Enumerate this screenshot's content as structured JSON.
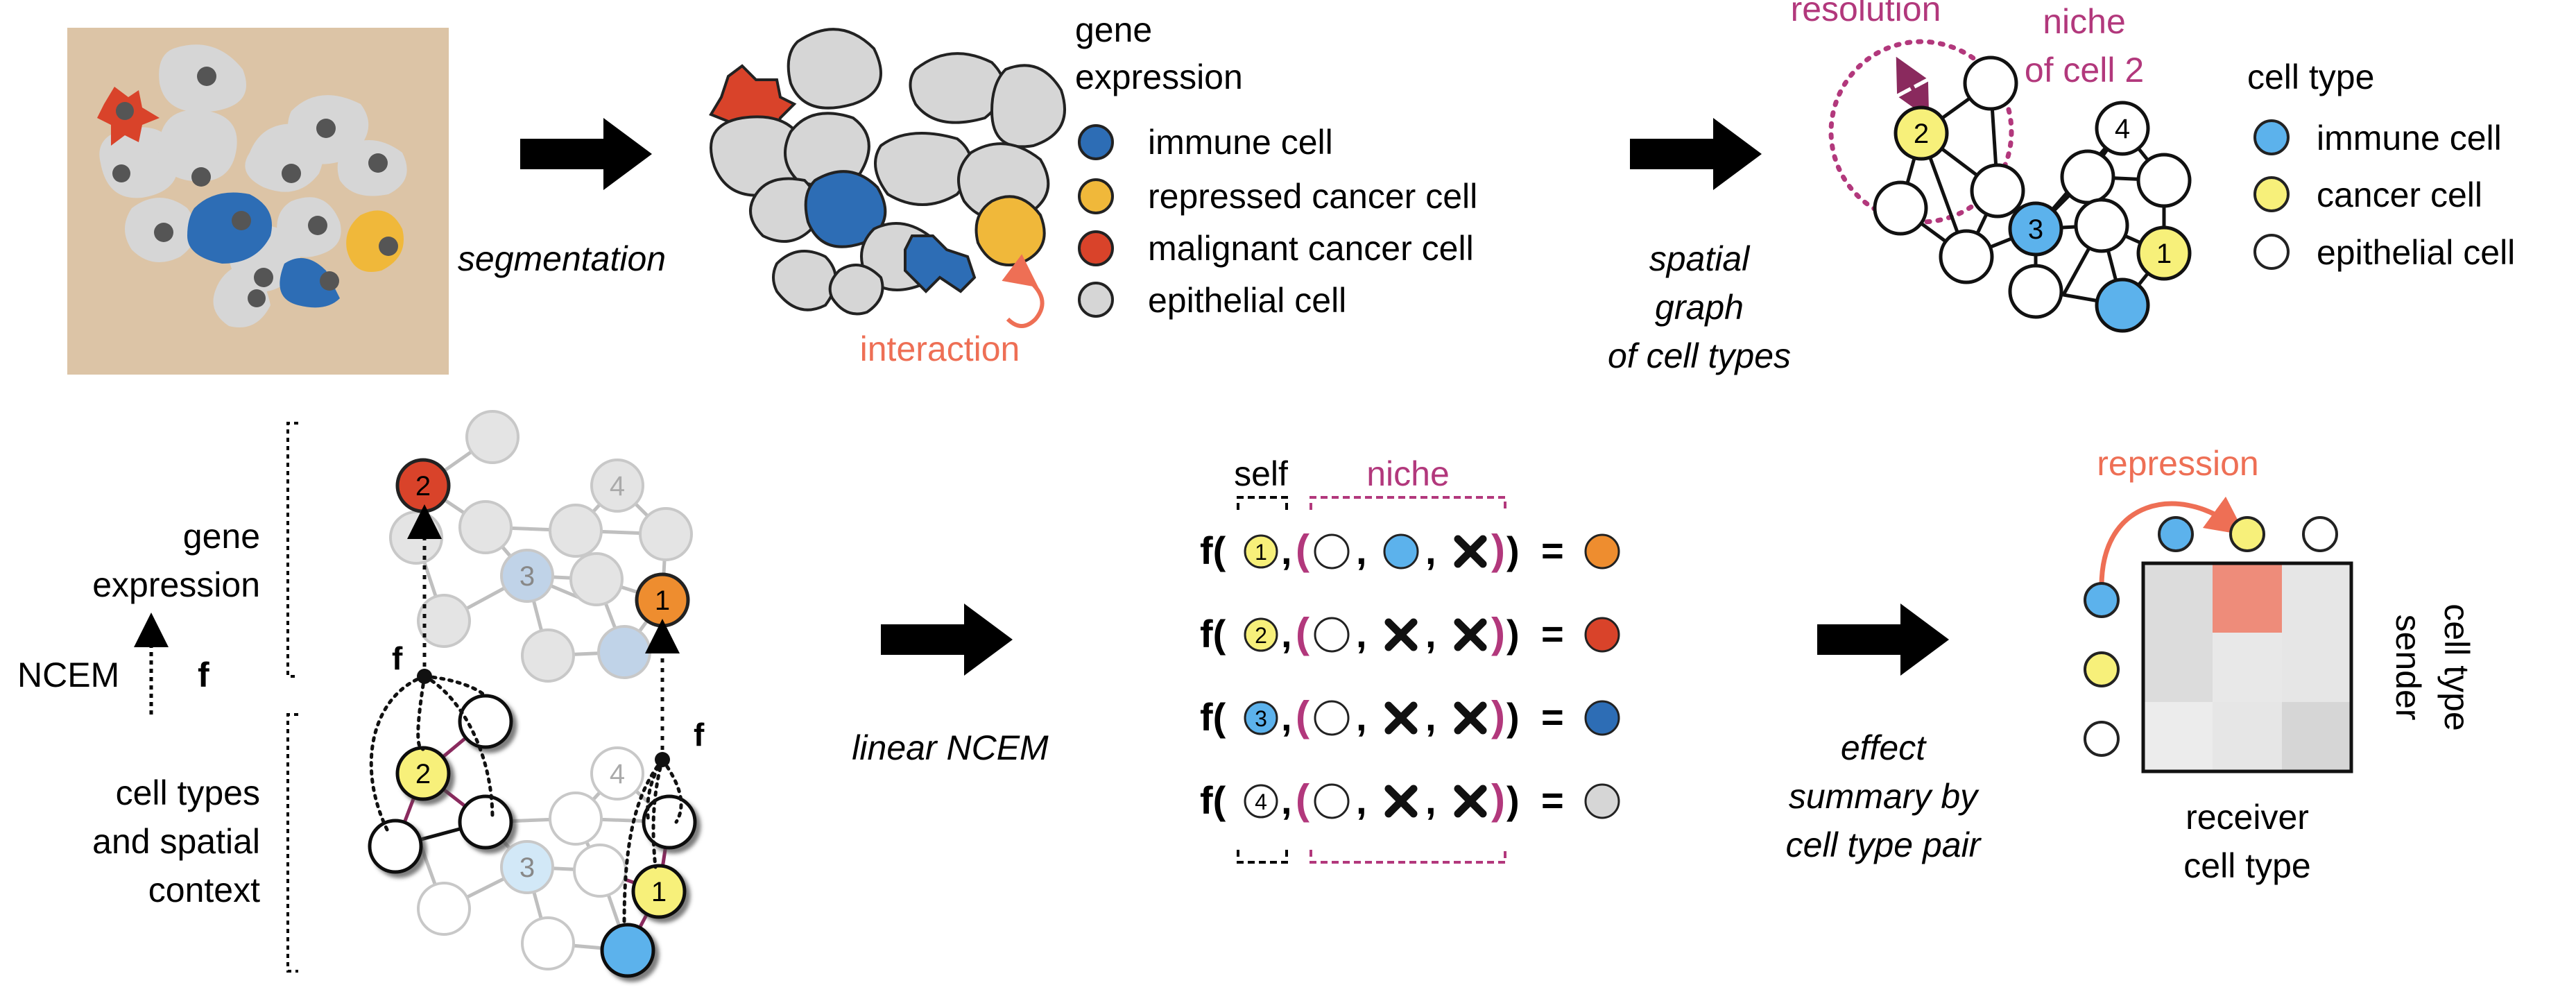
{
  "top": {
    "segmentation_label": "segmentation",
    "interaction_label": "interaction",
    "legend_gene_title": "gene\nexpression",
    "legend_gene_items": [
      "immune cell",
      "repressed cancer cell",
      "malignant cancer cell",
      "epithelial cell"
    ],
    "spatial_label": "spatial\ngraph\nof cell types",
    "resolution_label": "resolution",
    "niche_label": "niche\nof cell 2",
    "legend_celltype_title": "cell type",
    "legend_celltype_items": [
      "immune cell",
      "cancer cell",
      "epithelial cell"
    ],
    "node_labels": {
      "n1": "1",
      "n2": "2",
      "n3": "3",
      "n4": "4"
    }
  },
  "bottom": {
    "gene_expression_label": "gene\nexpression",
    "ncem_label": "NCEM",
    "f_label": "f",
    "context_label": "cell types\nand spatial\ncontext",
    "linear_ncem_label": "linear NCEM",
    "self_label": "self",
    "niche_label": "niche",
    "formula_rows": [
      {
        "f": "f(",
        "self_num": "1",
        "equals": "="
      },
      {
        "f": "f(",
        "self_num": "2",
        "equals": "="
      },
      {
        "f": "f(",
        "self_num": "3",
        "equals": "="
      },
      {
        "f": "f(",
        "self_num": "4",
        "equals": "="
      }
    ],
    "effect_label": "effect\nsummary by\ncell type pair",
    "repression_label": "repression",
    "sender_label": "sender\ncell type",
    "receiver_label": "receiver\ncell type"
  },
  "colors": {
    "immune": "#2d6db5",
    "repressed_cancer": "#f0b83a",
    "malignant": "#d9432a",
    "epithelial_gray": "#d6d6d6",
    "immune_light": "#5cb2ec",
    "cancer_yellow": "#f7f07a",
    "magenta": "#b2387c",
    "salmon": "#ee6f55",
    "tissue_bg": "#dcc4a6",
    "orange_out": "#ee8d2f"
  }
}
